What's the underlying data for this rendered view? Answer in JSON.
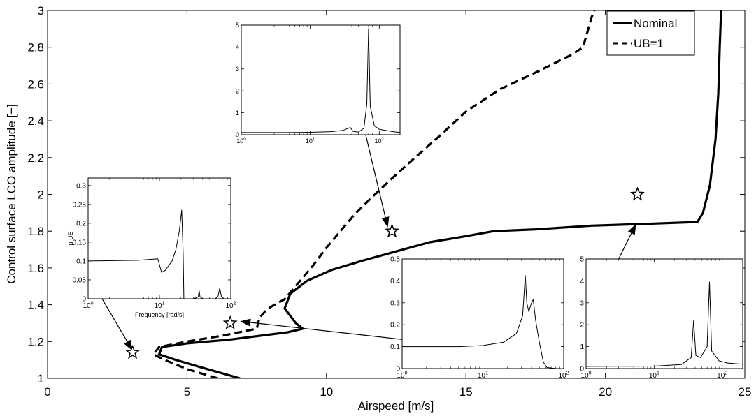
{
  "chart_data": {
    "type": "line",
    "xlabel": "Airspeed [m/s]",
    "ylabel": "Control surface LCO amplitude [−]",
    "xlim": [
      0,
      25
    ],
    "ylim": [
      1,
      3
    ],
    "xticks": [
      0,
      5,
      10,
      15,
      20,
      25
    ],
    "yticks": [
      1,
      1.2,
      1.4,
      1.6,
      1.8,
      2,
      2.2,
      2.4,
      2.6,
      2.8,
      3
    ],
    "grid": false,
    "legend_position": "top-right",
    "series": [
      {
        "name": "Nominal",
        "style": "solid",
        "points": [
          [
            6.9,
            1.0
          ],
          [
            5.5,
            1.06
          ],
          [
            4.6,
            1.1
          ],
          [
            4.0,
            1.13
          ],
          [
            4.1,
            1.17
          ],
          [
            5.0,
            1.19
          ],
          [
            6.5,
            1.21
          ],
          [
            8.6,
            1.25
          ],
          [
            9.15,
            1.27
          ],
          [
            8.9,
            1.3
          ],
          [
            8.5,
            1.38
          ],
          [
            8.7,
            1.46
          ],
          [
            9.3,
            1.53
          ],
          [
            10.2,
            1.59
          ],
          [
            11.3,
            1.64
          ],
          [
            12.5,
            1.69
          ],
          [
            13.7,
            1.74
          ],
          [
            14.9,
            1.77
          ],
          [
            16.0,
            1.8
          ],
          [
            17.5,
            1.81
          ],
          [
            19.5,
            1.83
          ],
          [
            21.5,
            1.84
          ],
          [
            23.3,
            1.85
          ],
          [
            23.5,
            1.9
          ],
          [
            23.75,
            2.05
          ],
          [
            23.95,
            2.3
          ],
          [
            24.05,
            2.55
          ],
          [
            24.1,
            2.8
          ],
          [
            24.15,
            3.0
          ]
        ]
      },
      {
        "name": "UB=1",
        "style": "dashed",
        "points": [
          [
            6.1,
            1.0
          ],
          [
            5.0,
            1.05
          ],
          [
            4.2,
            1.1
          ],
          [
            3.8,
            1.13
          ],
          [
            4.0,
            1.17
          ],
          [
            5.0,
            1.2
          ],
          [
            6.2,
            1.23
          ],
          [
            7.5,
            1.27
          ],
          [
            7.6,
            1.33
          ],
          [
            7.9,
            1.38
          ],
          [
            8.5,
            1.43
          ],
          [
            9.0,
            1.52
          ],
          [
            9.5,
            1.61
          ],
          [
            10.0,
            1.71
          ],
          [
            10.5,
            1.8
          ],
          [
            11.0,
            1.89
          ],
          [
            11.6,
            1.98
          ],
          [
            12.3,
            2.08
          ],
          [
            13.1,
            2.19
          ],
          [
            14.0,
            2.31
          ],
          [
            15.0,
            2.45
          ],
          [
            16.2,
            2.57
          ],
          [
            17.6,
            2.67
          ],
          [
            18.8,
            2.76
          ],
          [
            19.2,
            2.8
          ],
          [
            19.5,
            2.96
          ],
          [
            19.6,
            3.0
          ]
        ]
      }
    ],
    "markers": [
      {
        "x": 3.05,
        "y": 1.14,
        "symbol": "star"
      },
      {
        "x": 6.55,
        "y": 1.3,
        "symbol": "star"
      },
      {
        "x": 12.35,
        "y": 1.8,
        "symbol": "star"
      },
      {
        "x": 21.15,
        "y": 2.0,
        "symbol": "star"
      }
    ],
    "insets": [
      {
        "id": "top",
        "type": "line",
        "xscale": "log",
        "xlim": [
          1,
          200
        ],
        "ylim": [
          0,
          5
        ],
        "xticks": [
          1,
          10,
          100
        ],
        "xtick_labels": [
          "10",
          "10",
          "10"
        ],
        "xtick_exponents": [
          "0",
          "1",
          "2"
        ],
        "yticks": [
          0,
          1,
          2,
          3,
          4,
          5
        ],
        "ytick_labels": [
          "0",
          "1",
          "2",
          "3",
          "4",
          "5"
        ],
        "points": [
          [
            1,
            0.1
          ],
          [
            5,
            0.1
          ],
          [
            10,
            0.11
          ],
          [
            20,
            0.14
          ],
          [
            30,
            0.2
          ],
          [
            38,
            0.33
          ],
          [
            42,
            0.15
          ],
          [
            50,
            0.12
          ],
          [
            60,
            0.3
          ],
          [
            66,
            1.4
          ],
          [
            70,
            4.85
          ],
          [
            74,
            1.3
          ],
          [
            85,
            0.4
          ],
          [
            100,
            0.25
          ],
          [
            150,
            0.15
          ],
          [
            200,
            0.1
          ]
        ]
      },
      {
        "id": "left",
        "type": "line",
        "xscale": "log",
        "xlim": [
          1,
          100
        ],
        "ylim": [
          0,
          0.32
        ],
        "xticks": [
          1,
          10,
          100
        ],
        "xtick_labels": [
          "10",
          "10",
          "10"
        ],
        "xtick_exponents": [
          "0",
          "1",
          "2"
        ],
        "yticks": [
          0,
          0.05,
          0.1,
          0.15,
          0.2,
          0.25,
          0.3
        ],
        "ytick_labels": [
          "0",
          "0.05",
          "0.1",
          "0.15",
          "0.2",
          "0.25",
          "0.3"
        ],
        "xlabel": "Frequency [rad/s]",
        "ylabel": "μ UB",
        "points": [
          [
            1,
            0.1
          ],
          [
            5,
            0.102
          ],
          [
            9.5,
            0.106
          ],
          [
            10,
            0.09
          ],
          [
            10.7,
            0.07
          ],
          [
            12,
            0.075
          ],
          [
            15,
            0.1
          ],
          [
            17,
            0.13
          ],
          [
            19,
            0.18
          ],
          [
            20.5,
            0.235
          ],
          [
            21.5,
            0.12
          ],
          [
            22,
            0.0
          ],
          [
            30,
            0.0
          ],
          [
            35,
            0.005
          ],
          [
            36,
            0.022
          ],
          [
            37,
            0.005
          ],
          [
            40,
            0.0
          ],
          [
            60,
            0.0
          ],
          [
            66,
            0.005
          ],
          [
            70,
            0.028
          ],
          [
            74,
            0.005
          ],
          [
            80,
            0.0
          ],
          [
            100,
            0.0
          ]
        ]
      },
      {
        "id": "bottom-right",
        "type": "line",
        "xscale": "log",
        "xlim": [
          1,
          100
        ],
        "ylim": [
          0,
          0.5
        ],
        "xticks": [
          1,
          10,
          100
        ],
        "xtick_labels": [
          "10",
          "10",
          "10"
        ],
        "xtick_exponents": [
          "0",
          "1",
          "2"
        ],
        "yticks": [
          0,
          0.1,
          0.2,
          0.3,
          0.4,
          0.5
        ],
        "ytick_labels": [
          "0",
          "0.1",
          "0.2",
          "0.3",
          "0.4",
          "0.5"
        ],
        "points": [
          [
            1,
            0.1
          ],
          [
            5,
            0.1
          ],
          [
            10,
            0.105
          ],
          [
            18,
            0.12
          ],
          [
            26,
            0.16
          ],
          [
            31,
            0.24
          ],
          [
            33.5,
            0.425
          ],
          [
            35,
            0.3
          ],
          [
            37,
            0.26
          ],
          [
            40,
            0.3
          ],
          [
            42,
            0.315
          ],
          [
            45,
            0.22
          ],
          [
            50,
            0.12
          ],
          [
            56,
            0.03
          ],
          [
            62,
            0.005
          ],
          [
            80,
            0.0
          ],
          [
            100,
            0.0
          ]
        ]
      },
      {
        "id": "far-right",
        "type": "line",
        "xscale": "log",
        "xlim": [
          1,
          200
        ],
        "ylim": [
          0,
          5
        ],
        "xticks": [
          1,
          10,
          100
        ],
        "xtick_labels": [
          "10",
          "10",
          "10"
        ],
        "xtick_exponents": [
          "0",
          "1",
          "2"
        ],
        "yticks": [
          0,
          1,
          2,
          3,
          4,
          5
        ],
        "ytick_labels": [
          "0",
          "1",
          "2",
          "3",
          "4",
          "5"
        ],
        "points": [
          [
            1,
            0.1
          ],
          [
            10,
            0.11
          ],
          [
            25,
            0.18
          ],
          [
            35,
            0.5
          ],
          [
            38,
            2.2
          ],
          [
            41,
            0.6
          ],
          [
            48,
            0.5
          ],
          [
            60,
            1.0
          ],
          [
            65,
            3.95
          ],
          [
            70,
            0.8
          ],
          [
            90,
            0.35
          ],
          [
            120,
            0.25
          ],
          [
            200,
            0.2
          ]
        ]
      }
    ],
    "annotations": [
      {
        "from": [
          1.5,
          1.55
        ],
        "to": [
          3.05,
          1.15
        ],
        "type": "arrow"
      },
      {
        "from": [
          11.35,
          2.36
        ],
        "to": [
          12.2,
          1.82
        ],
        "type": "arrow"
      },
      {
        "from": [
          12.8,
          1.21
        ],
        "to": [
          6.9,
          1.31
        ],
        "type": "arrow"
      },
      {
        "from": [
          20.25,
          1.58
        ],
        "to": [
          21.1,
          1.84
        ],
        "type": "arrow"
      }
    ]
  }
}
